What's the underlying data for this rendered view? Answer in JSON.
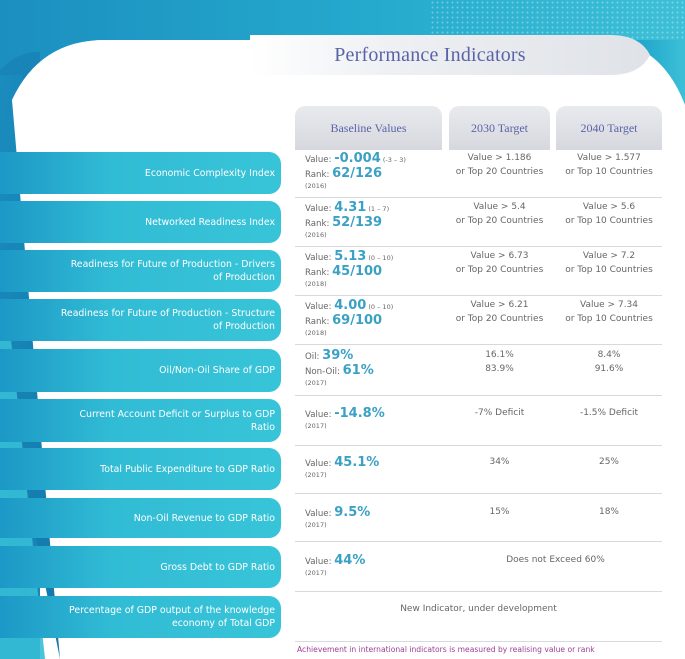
{
  "title": "Performance Indicators",
  "headers": {
    "baseline": "Baseline Values",
    "t2030": "2030 Target",
    "t2040": "2040 Target"
  },
  "rows": [
    {
      "label": "Economic Complexity Index",
      "l1p": "Value: ",
      "l1v": "-0.004",
      "l1r": " (-3 – 3)",
      "l2p": "Rank: ",
      "l2v": "62/126",
      "year": "(2016)",
      "t2030a": "Value > 1.186",
      "t2030b": "or Top 20 Countries",
      "t2040a": "Value > 1.577",
      "t2040b": "or Top 10 Countries"
    },
    {
      "label": "Networked Readiness Index",
      "l1p": "Value: ",
      "l1v": "4.31",
      "l1r": " (1 – 7)",
      "l2p": "Rank: ",
      "l2v": "52/139",
      "year": "(2016)",
      "t2030a": "Value > 5.4",
      "t2030b": "or Top 20 Countries",
      "t2040a": "Value > 5.6",
      "t2040b": "or Top 10 Countries"
    },
    {
      "label": "Readiness for Future of Production - Drivers of Production",
      "l1p": "Value: ",
      "l1v": "5.13",
      "l1r": " (0 – 10)",
      "l2p": "Rank: ",
      "l2v": "45/100",
      "year": "(2018)",
      "t2030a": "Value > 6.73",
      "t2030b": "or Top 20 Countries",
      "t2040a": "Value > 7.2",
      "t2040b": "or Top 10 Countries"
    },
    {
      "label": "Readiness for Future of Production - Structure of Production",
      "l1p": "Value: ",
      "l1v": "4.00",
      "l1r": " (0 – 10)",
      "l2p": "Rank: ",
      "l2v": "69/100",
      "year": "(2018)",
      "t2030a": "Value > 6.21",
      "t2030b": "or Top 20 Countries",
      "t2040a": "Value > 7.34",
      "t2040b": "or Top 10 Countries"
    },
    {
      "label": "Oil/Non-Oil Share of GDP",
      "l1p": "Oil: ",
      "l1v": "39%",
      "l1r": "",
      "l2p": "Non-Oil: ",
      "l2v": "61%",
      "year": "(2017)",
      "t2030a": "16.1%",
      "t2030b": "83.9%",
      "t2040a": "8.4%",
      "t2040b": "91.6%"
    },
    {
      "label": "Current Account Deficit or Surplus to GDP Ratio",
      "l1p": "Value: ",
      "l1v": "-14.8%",
      "l1r": "",
      "l2p": "",
      "l2v": "",
      "year": "(2017)",
      "t2030a": "-7% Deficit",
      "t2030b": "",
      "t2040a": "-1.5% Deficit",
      "t2040b": ""
    },
    {
      "label": "Total Public Expenditure to GDP Ratio",
      "l1p": "Value: ",
      "l1v": "45.1%",
      "l1r": "",
      "l2p": "",
      "l2v": "",
      "year": "(2017)",
      "t2030a": "34%",
      "t2030b": "",
      "t2040a": "25%",
      "t2040b": ""
    },
    {
      "label": "Non-Oil Revenue to GDP Ratio",
      "l1p": "Value: ",
      "l1v": "9.5%",
      "l1r": "",
      "l2p": "",
      "l2v": "",
      "year": "(2017)",
      "t2030a": "15%",
      "t2030b": "",
      "t2040a": "18%",
      "t2040b": ""
    },
    {
      "label": "Gross Debt to GDP Ratio",
      "l1p": "Value: ",
      "l1v": "44%",
      "l1r": "",
      "l2p": "",
      "l2v": "",
      "year": "(2017)",
      "t2030a": "Does not Exceed 60%",
      "t2030b": "",
      "t2040a": "",
      "t2040b": ""
    },
    {
      "label": "Percentage of GDP output of the knowledge economy of Total GDP",
      "l1p": "",
      "l1v": "",
      "l1r": "",
      "l2p": "",
      "l2v": "",
      "year": "",
      "t2030a": "New Indicator, under development",
      "t2030b": "",
      "t2040a": "",
      "t2040b": ""
    }
  ],
  "footnote": "Achievement in international indicators is measured by realising value or rank"
}
